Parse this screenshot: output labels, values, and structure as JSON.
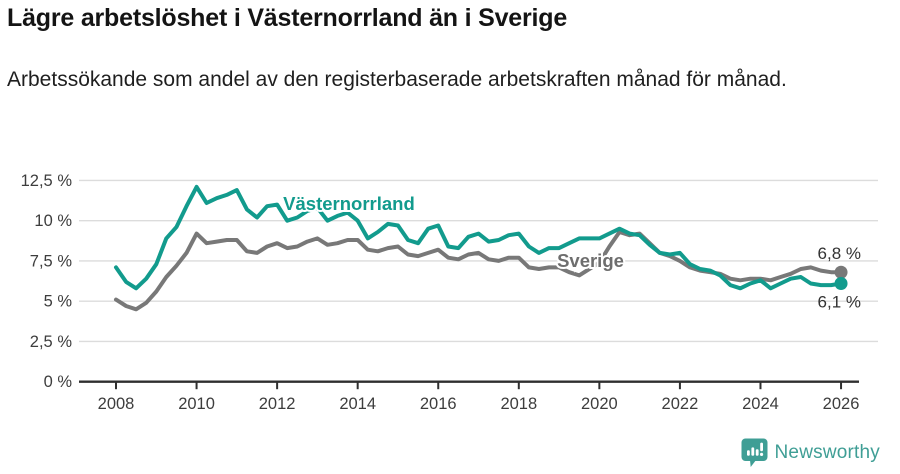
{
  "header": {
    "title": "Lägre arbetslöshet i Västernorrland än i Sverige",
    "subtitle": "Arbetssökande som andel av den registerbaserade arbetskraften månad för månad."
  },
  "footer": {
    "brand": "Newsworthy",
    "logo_icon": "newsworthy-bubble-barchart-icon"
  },
  "colors": {
    "vasternorrland": "#129b8d",
    "sverige": "#787878",
    "sverige_label": "#6e6e6e",
    "grid": "#dcdcdc",
    "axis": "#2f2f2f",
    "tick_text": "#3d3d3d",
    "annotation_text": "#333333",
    "brand": "#3f9e95",
    "background": "#ffffff"
  },
  "chart_data": {
    "type": "line",
    "title": "Lägre arbetslöshet i Västernorrland än i Sverige",
    "xlabel": "",
    "ylabel": "Arbetssökande som andel av den registerbaserade arbetskraften",
    "unit": "%",
    "grid": true,
    "legend": "inline-labels",
    "xlim": [
      2007.4,
      2026.6
    ],
    "ylim": [
      0,
      13.2
    ],
    "yticks": {
      "values": [
        0,
        2.5,
        5,
        7.5,
        10,
        12.5
      ],
      "labels": [
        "0 %",
        "2,5 %",
        "5 %",
        "7,5 %",
        "10 %",
        "12,5 %"
      ]
    },
    "xticks": {
      "values": [
        2008,
        2010,
        2012,
        2014,
        2016,
        2018,
        2020,
        2022,
        2024,
        2026
      ],
      "labels": [
        "2008",
        "2010",
        "2012",
        "2014",
        "2016",
        "2018",
        "2020",
        "2022",
        "2024",
        "2026"
      ]
    },
    "x_start": 2008.0,
    "x_step": 0.25,
    "series": [
      {
        "name": "Sverige",
        "color": "#787878",
        "label_color": "#6e6e6e",
        "label_anchor": {
          "x": 2018.95,
          "y": 7.12
        },
        "end_label": "6,8 %",
        "end_label_position": "above",
        "values": [
          5.1,
          4.7,
          4.5,
          4.9,
          5.6,
          6.5,
          7.2,
          8.0,
          9.2,
          8.6,
          8.7,
          8.8,
          8.8,
          8.1,
          8.0,
          8.4,
          8.6,
          8.3,
          8.4,
          8.7,
          8.9,
          8.5,
          8.6,
          8.8,
          8.8,
          8.2,
          8.1,
          8.3,
          8.4,
          7.9,
          7.8,
          8.0,
          8.2,
          7.7,
          7.6,
          7.9,
          8.0,
          7.6,
          7.5,
          7.7,
          7.7,
          7.1,
          7.0,
          7.1,
          7.1,
          6.8,
          6.6,
          7.0,
          7.4,
          8.4,
          9.3,
          9.1,
          9.2,
          8.6,
          8.0,
          7.8,
          7.5,
          7.1,
          6.9,
          6.8,
          6.7,
          6.4,
          6.3,
          6.4,
          6.4,
          6.3,
          6.5,
          6.7,
          7.0,
          7.1,
          6.9,
          6.8,
          6.8
        ]
      },
      {
        "name": "Västernorrland",
        "color": "#129b8d",
        "label_color": "#129b8d",
        "label_anchor": {
          "x": 2012.15,
          "y": 10.66
        },
        "end_label": "6,1 %",
        "end_label_position": "below",
        "values": [
          7.1,
          6.2,
          5.8,
          6.4,
          7.3,
          8.9,
          9.6,
          10.9,
          12.1,
          11.1,
          11.4,
          11.6,
          11.9,
          10.7,
          10.2,
          10.9,
          11.0,
          10.0,
          10.2,
          10.6,
          10.8,
          10.0,
          10.3,
          10.5,
          10.0,
          8.9,
          9.3,
          9.8,
          9.7,
          8.8,
          8.6,
          9.5,
          9.7,
          8.4,
          8.3,
          9.0,
          9.2,
          8.7,
          8.8,
          9.1,
          9.2,
          8.4,
          8.0,
          8.3,
          8.3,
          8.6,
          8.9,
          8.9,
          8.9,
          9.2,
          9.5,
          9.2,
          9.1,
          8.5,
          8.0,
          7.9,
          8.0,
          7.3,
          7.0,
          6.9,
          6.6,
          6.0,
          5.8,
          6.1,
          6.3,
          5.8,
          6.1,
          6.4,
          6.5,
          6.1,
          6.0,
          6.0,
          6.1
        ]
      }
    ]
  }
}
